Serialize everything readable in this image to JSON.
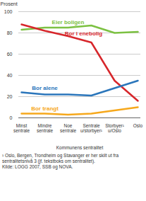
{
  "chart_data": {
    "type": "line",
    "x_label": "Kommunens sentralitet",
    "y_label": "Prosent",
    "categories": [
      "Minst sentrale",
      "Mindre sentrale",
      "Noe sentrale",
      "Sentrale u/storbyer¹",
      "Storbyer¹ u/Oslo",
      "Oslo"
    ],
    "series": [
      {
        "name": "Eier boligen",
        "color": "#7cc142",
        "values": [
          83,
          85,
          85,
          87,
          80,
          81
        ]
      },
      {
        "name": "Bor i enebolig",
        "color": "#d7262b",
        "values": [
          88,
          82,
          77,
          71,
          35,
          16
        ]
      },
      {
        "name": "Bor alene",
        "color": "#2b76bb",
        "values": [
          24,
          22,
          22,
          21,
          28,
          35
        ]
      },
      {
        "name": "Bor trangt",
        "color": "#f6a81c",
        "values": [
          4,
          4,
          3,
          4,
          7,
          10
        ]
      }
    ],
    "ylim": [
      0,
      100
    ],
    "yticks": [
      0,
      20,
      40,
      60,
      80,
      100
    ],
    "grid": true,
    "footnote": "¹ Oslo, Bergen, Trondheim og Stavanger er her skilt ut fra sentralitetsnivå 3 (jf. tekstboks om sentralitet).",
    "source": "Kilde: LOGG 2007, SSB og NOVA."
  }
}
